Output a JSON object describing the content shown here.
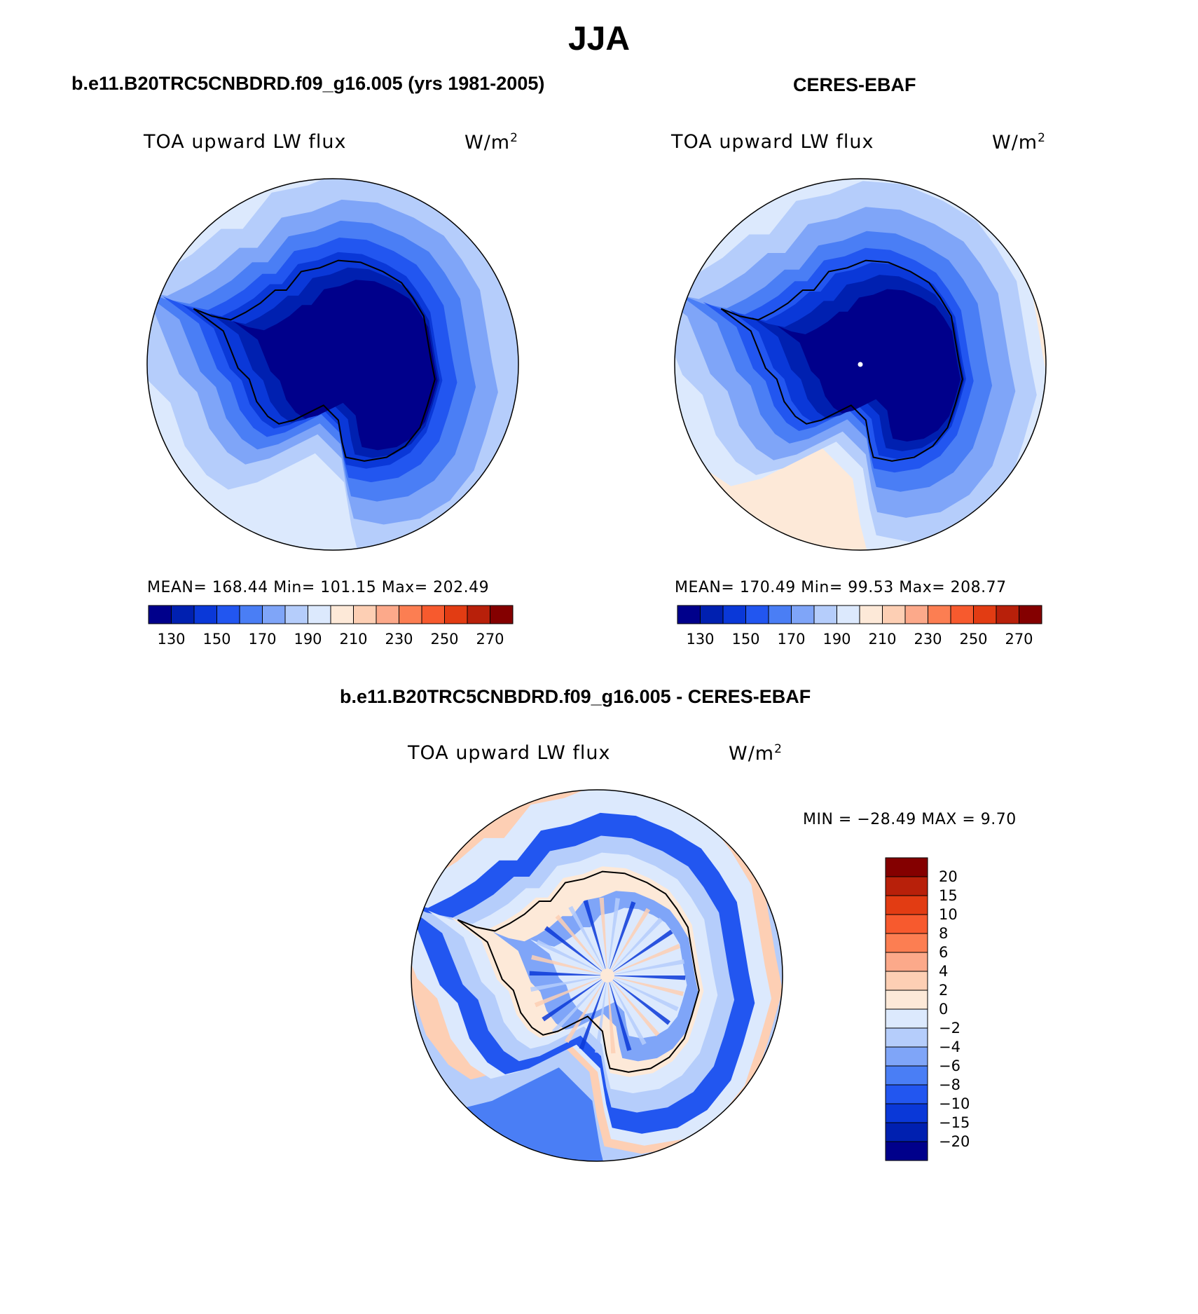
{
  "title": "JJA",
  "colors": {
    "cool_palette": [
      "#00008b",
      "#0020b0",
      "#0a38d8",
      "#2256f0",
      "#4a7ef5",
      "#7fa5f8",
      "#b5cdfb",
      "#dce9fd"
    ],
    "warm_palette": [
      "#fde9d8",
      "#fdcfb4",
      "#fca98a",
      "#fc7e52",
      "#f75a2e",
      "#e23c13",
      "#b8200a",
      "#840000"
    ],
    "diff_palette": [
      "#00008b",
      "#0020b0",
      "#0a38d8",
      "#2256f0",
      "#4a7ef5",
      "#7fa5f8",
      "#b5cdfb",
      "#dce9fd",
      "#fde9d8",
      "#fdcfb4",
      "#fca98a",
      "#fc7e52",
      "#f75a2e",
      "#e23c13",
      "#b8200a",
      "#840000"
    ],
    "coastline": "#000000"
  },
  "panels": {
    "model": {
      "title": "b.e11.B20TRC5CNBDRD.f09_g16.005 (yrs 1981-2005)",
      "variable": "TOA upward LW flux",
      "units_base": "W/m",
      "units_exp": "2",
      "stats": "MEAN= 168.44   Min= 101.15   Max= 202.49"
    },
    "obs": {
      "title": "CERES-EBAF",
      "variable": "TOA upward LW flux",
      "units_base": "W/m",
      "units_exp": "2",
      "stats": "MEAN= 170.49   Min=  99.53   Max= 208.77"
    },
    "diff": {
      "title": "b.e11.B20TRC5CNBDRD.f09_g16.005 - CERES-EBAF",
      "variable": "TOA upward LW flux",
      "units_base": "W/m",
      "units_exp": "2",
      "stats": "MIN = −28.49 MAX =    9.70"
    }
  },
  "chart_data": [
    {
      "type": "heatmap",
      "panel": "model",
      "projection": "south polar stereographic",
      "colorbar_levels": [
        130,
        140,
        150,
        160,
        170,
        180,
        190,
        200,
        210,
        220,
        230,
        240,
        250,
        260,
        270
      ],
      "colorbar_tick_labels": [
        "130",
        "150",
        "170",
        "190",
        "210",
        "230",
        "250",
        "270"
      ],
      "mean": 168.44,
      "min": 101.15,
      "max": 202.49
    },
    {
      "type": "heatmap",
      "panel": "obs",
      "projection": "south polar stereographic",
      "colorbar_levels": [
        130,
        140,
        150,
        160,
        170,
        180,
        190,
        200,
        210,
        220,
        230,
        240,
        250,
        260,
        270
      ],
      "colorbar_tick_labels": [
        "130",
        "150",
        "170",
        "190",
        "210",
        "230",
        "250",
        "270"
      ],
      "mean": 170.49,
      "min": 99.53,
      "max": 208.77
    },
    {
      "type": "heatmap",
      "panel": "diff",
      "projection": "south polar stereographic",
      "colorbar_tick_labels": [
        "20",
        "15",
        "10",
        "8",
        "6",
        "4",
        "2",
        "0",
        "−2",
        "−4",
        "−6",
        "−8",
        "−10",
        "−15",
        "−20"
      ],
      "min": -28.49,
      "max": 9.7
    }
  ]
}
